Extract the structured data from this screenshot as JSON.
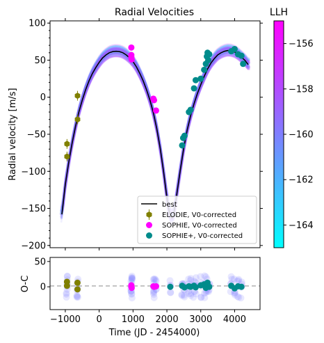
{
  "chart_data": {
    "type": "scatter",
    "title": "Radial Velocities",
    "main": {
      "ylabel": "Radial velocity [m/s]",
      "xlim": [
        -1450,
        4750
      ],
      "ylim": [
        -203,
        103
      ],
      "xticks": [
        -1000,
        0,
        1000,
        2000,
        3000,
        4000
      ],
      "yticks": [
        -200,
        -150,
        -100,
        -50,
        0,
        50,
        100
      ],
      "ytick_labels": [
        "−200",
        "−150",
        "−100",
        "−50",
        "0",
        "50",
        "100"
      ],
      "best_fit": {
        "name": "best",
        "color": "#000000",
        "x": [
          -1100,
          -1000,
          -900,
          -800,
          -700,
          -600,
          -500,
          -400,
          -300,
          -200,
          -100,
          0,
          100,
          200,
          300,
          400,
          500,
          600,
          700,
          800,
          900,
          1000,
          1100,
          1200,
          1300,
          1400,
          1500,
          1600,
          1700,
          1800,
          1900,
          2000,
          2050,
          2100,
          2150,
          2200,
          2250,
          2300,
          2400,
          2500,
          2600,
          2700,
          2800,
          2900,
          3000,
          3100,
          3200,
          3300,
          3400,
          3500,
          3600,
          3700,
          3800,
          3900,
          4000,
          4100,
          4200,
          4300,
          4400
        ],
        "y": [
          -158,
          -118,
          -88,
          -62,
          -40,
          -20,
          -4,
          10,
          22,
          32,
          40,
          47,
          53,
          57,
          60,
          61.5,
          62,
          61.5,
          60,
          57,
          53,
          48,
          41,
          32,
          22,
          10,
          -4,
          -21,
          -42,
          -68,
          -100,
          -135,
          -150,
          -160,
          -163,
          -158,
          -145,
          -128,
          -97,
          -68,
          -44,
          -25,
          -9,
          5,
          17,
          28,
          38,
          46,
          52,
          57,
          60,
          62,
          63,
          62.5,
          61,
          58,
          54,
          50,
          44
        ]
      },
      "series": [
        {
          "name": "ELODIE, V0-corrected",
          "color": "#808000",
          "marker": "hexagon",
          "x": [
            -950,
            -950,
            -640,
            -640
          ],
          "y": [
            -63,
            -80,
            2,
            -30
          ]
        },
        {
          "name": "SOPHIE, V0-corrected",
          "color": "#ff00ff",
          "marker": "circle",
          "x": [
            950,
            950,
            950,
            960,
            1600,
            1620,
            1680
          ],
          "y": [
            67,
            57,
            54,
            51,
            -2,
            -4,
            -18
          ]
        },
        {
          "name": "SOPHIE+, V0-corrected",
          "color": "#008b8b",
          "marker": "circle",
          "x": [
            2450,
            2480,
            2520,
            2650,
            2700,
            2800,
            2850,
            3000,
            3100,
            3150,
            3180,
            3200,
            3220,
            3250,
            3900,
            4000,
            4100,
            4200,
            4250
          ],
          "y": [
            -65,
            -55,
            -52,
            -20,
            -17,
            12,
            23,
            25,
            37,
            45,
            55,
            60,
            50,
            58,
            62,
            65,
            58,
            56,
            45
          ]
        }
      ],
      "legend": {
        "placement": "lower-right",
        "entries": [
          "best",
          "ELODIE, V0-corrected",
          "SOPHIE, V0-corrected",
          "SOPHIE+, V0-corrected"
        ]
      }
    },
    "residuals": {
      "ylabel": "O-C",
      "xlabel": "Time (JD - 2454000)",
      "xlim": [
        -1450,
        4750
      ],
      "ylim": [
        -45,
        58
      ],
      "yticks": [
        0,
        50
      ],
      "zero_line": true,
      "elodie": {
        "x": [
          -950,
          -950,
          -640,
          -640
        ],
        "y": [
          10,
          2,
          8,
          -5
        ]
      },
      "sophie": {
        "x": [
          950,
          950,
          960,
          1600,
          1620,
          1680
        ],
        "y": [
          3,
          0,
          -2,
          1,
          0,
          1
        ]
      },
      "sophie_plus": {
        "x": [
          2100,
          2450,
          2520,
          2650,
          2700,
          2800,
          2850,
          3000,
          3100,
          3150,
          3200,
          3250,
          3900,
          4000,
          4100,
          4200
        ],
        "y": [
          0,
          2,
          -1,
          1,
          0,
          2,
          -1,
          3,
          5,
          -2,
          8,
          0,
          2,
          -3,
          1,
          0
        ]
      }
    },
    "colorbar": {
      "title": "LLH",
      "min": -165,
      "max": -155,
      "ticks": [
        -164,
        -162,
        -160,
        -158,
        -156
      ],
      "tick_labels": [
        "−164",
        "−162",
        "−160",
        "−158",
        "−156"
      ],
      "colors": [
        "#00ffff",
        "#7f7fff",
        "#ff00ff"
      ]
    }
  }
}
